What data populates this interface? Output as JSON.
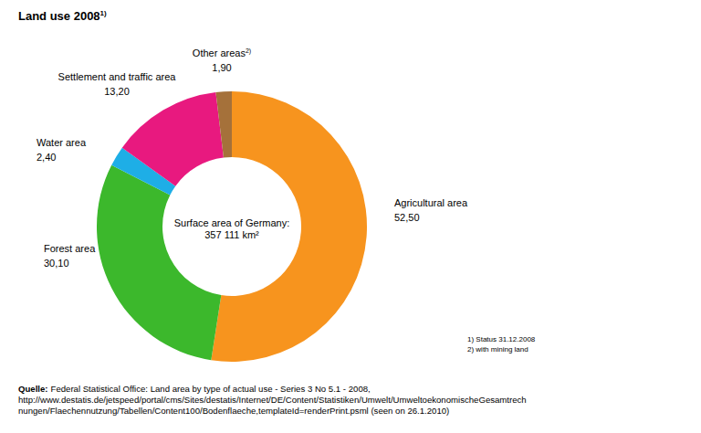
{
  "chart_data": {
    "type": "donut",
    "title": "Land use 2008",
    "title_note": "1)",
    "categories": [
      "Agricultural area",
      "Forest area",
      "Water area",
      "Settlement and traffic area",
      "Other areas"
    ],
    "category_notes": [
      null,
      null,
      null,
      null,
      "2)"
    ],
    "values": [
      52.5,
      30.1,
      2.4,
      13.2,
      1.9
    ],
    "value_labels": [
      "52,50",
      "30,10",
      "2,40",
      "13,20",
      "1,90"
    ],
    "colors": [
      "#f7941e",
      "#3cb82c",
      "#1eaee6",
      "#e8197f",
      "#a5713a"
    ],
    "data_labels": true,
    "center_text": [
      "Surface area of Germany:",
      "357 111 km²"
    ],
    "footnotes": [
      "1) Status 31.12.2008",
      "2) with mining land"
    ],
    "source_label": "Quelle:",
    "source": [
      "Federal Statistical Office: Land area by type of actual use - Series 3 No 5.1 - 2008,",
      "http://www.destatis.de/jetspeed/portal/cms/Sites/destatis/Internet/DE/Content/Statistiken/Umwelt/UmweltoekonomischeGesamtrech",
      "nungen/Flaechennutzung/Tabellen/Content100/Bodenflaeche,templateId=renderPrint.psml  (seen on 26.1.2010)"
    ]
  }
}
